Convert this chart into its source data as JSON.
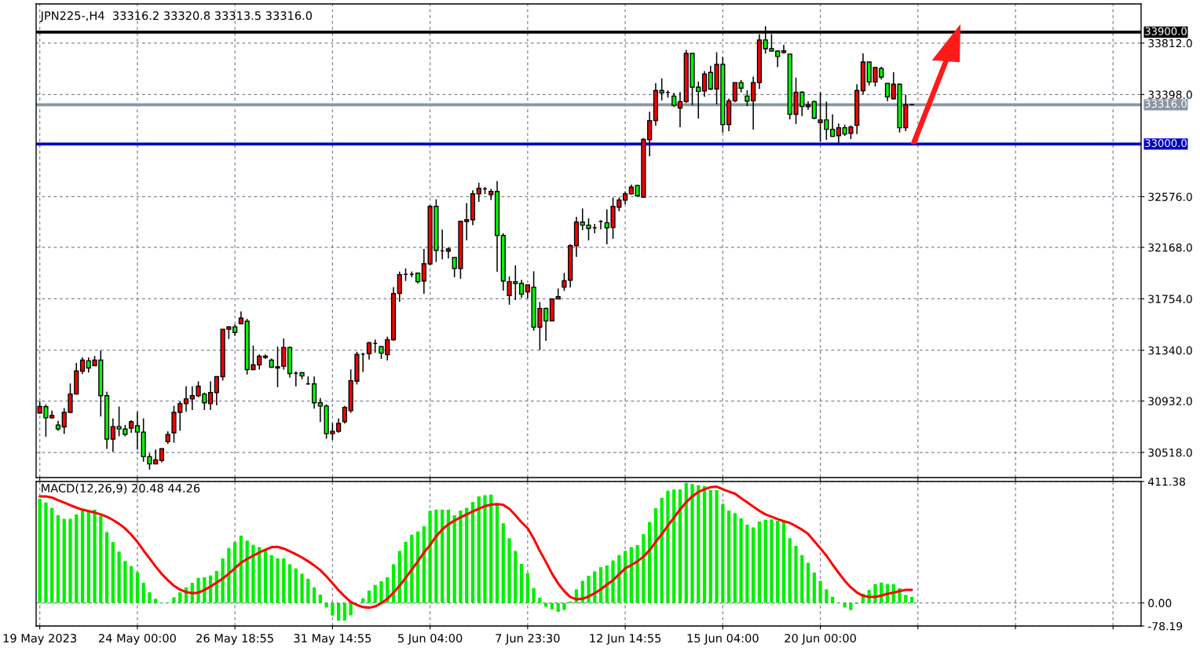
{
  "chart_data": [
    {
      "type": "candlestick",
      "title": "JPN225-,H4  33316.2 33320.8 33313.5 33316.0",
      "categories": [
        null,
        null,
        null,
        null,
        null,
        null,
        null,
        null,
        null,
        null,
        null,
        null,
        null,
        null,
        null,
        null,
        null,
        null,
        null,
        null,
        null,
        null,
        null,
        null,
        null,
        null,
        null,
        null,
        null,
        null,
        null,
        null,
        null,
        null,
        null,
        null,
        null,
        null,
        null,
        null,
        null,
        null,
        null,
        null,
        null,
        null,
        null,
        null,
        null,
        null,
        null,
        null,
        null,
        null,
        null,
        null,
        null,
        null,
        null,
        null,
        null,
        null,
        null,
        null,
        null,
        null,
        null,
        null,
        null,
        null,
        null,
        null,
        null,
        null,
        null,
        null,
        null,
        null,
        null,
        null,
        null,
        null,
        null,
        null,
        null,
        null,
        null,
        null,
        null,
        null,
        null,
        null,
        null,
        null,
        null,
        null,
        null,
        null,
        null,
        null,
        null,
        null,
        null,
        null,
        null,
        null,
        null,
        null,
        null,
        null,
        null,
        null,
        null,
        null,
        null,
        null,
        null,
        null,
        null,
        null,
        null,
        null,
        null,
        null,
        null,
        null,
        null,
        null,
        null,
        null,
        null,
        null,
        null,
        null,
        null,
        null,
        null,
        null,
        null,
        null,
        null,
        null,
        null,
        null,
        null,
        null,
        null,
        null,
        null,
        null,
        null,
        null,
        null,
        null,
        null,
        null,
        null,
        null,
        null,
        null,
        null,
        null,
        null,
        null,
        null,
        null,
        null,
        null,
        null,
        null,
        null,
        null,
        null,
        null,
        null,
        null,
        null,
        null,
        null,
        null,
        null
      ],
      "ohlc": [
        [
          30835,
          30930,
          30830,
          30888
        ],
        [
          30886,
          30905,
          30644,
          30797
        ],
        [
          30797,
          30854,
          30788,
          30816
        ],
        [
          30739,
          30773,
          30692,
          30707
        ],
        [
          30724,
          30875,
          30667,
          30841
        ],
        [
          30841,
          31073,
          30835,
          30988
        ],
        [
          30988,
          31238,
          30985,
          31174
        ],
        [
          31172,
          31283,
          31151,
          31261
        ],
        [
          31255,
          31283,
          31162,
          31198
        ],
        [
          31217,
          31295,
          31215,
          31261
        ],
        [
          31261,
          31340,
          30807,
          30975
        ],
        [
          30975,
          31007,
          30546,
          30625
        ],
        [
          30625,
          30792,
          30523,
          30726
        ],
        [
          30726,
          30888,
          30648,
          30707
        ],
        [
          30707,
          30739,
          30648,
          30663
        ],
        [
          30714,
          30777,
          30676,
          30765
        ],
        [
          30733,
          30845,
          30540,
          30682
        ],
        [
          30682,
          30792,
          30444,
          30484
        ],
        [
          30484,
          30510,
          30380,
          30427
        ],
        [
          30427,
          30542,
          30425,
          30459
        ],
        [
          30453,
          30550,
          30438,
          30548
        ],
        [
          30605,
          30688,
          30586,
          30663
        ],
        [
          30676,
          30894,
          30597,
          30841
        ],
        [
          30841,
          30930,
          30692,
          30911
        ],
        [
          30911,
          31051,
          30845,
          30949
        ],
        [
          30949,
          31051,
          30860,
          30975
        ],
        [
          30975,
          31090,
          30962,
          31051
        ],
        [
          30988,
          31000,
          30860,
          30918
        ],
        [
          30911,
          31090,
          30860,
          31000
        ],
        [
          31000,
          31128,
          30898,
          31128
        ],
        [
          31128,
          31510,
          31096,
          31510
        ],
        [
          31510,
          31535,
          31431,
          31529
        ],
        [
          31529,
          31548,
          31459,
          31484
        ],
        [
          31554,
          31652,
          31550,
          31599
        ],
        [
          31574,
          31593,
          31145,
          31185
        ],
        [
          31185,
          31378,
          31180,
          31223
        ],
        [
          31223,
          31306,
          31185,
          31293
        ],
        [
          31293,
          31306,
          31270,
          31283
        ],
        [
          31261,
          31274,
          31198,
          31204
        ],
        [
          31198,
          31370,
          31043,
          31208
        ],
        [
          31211,
          31435,
          31185,
          31363
        ],
        [
          31363,
          31370,
          31121,
          31153
        ],
        [
          31155,
          31170,
          31049,
          31155
        ],
        [
          31160,
          31164,
          31106,
          31134
        ],
        [
          31070,
          31130,
          31064,
          31070
        ],
        [
          31070,
          31130,
          30871,
          30918
        ],
        [
          30918,
          30956,
          30763,
          30892
        ],
        [
          30892,
          30905,
          30629,
          30669
        ],
        [
          30669,
          30754,
          30618,
          30688
        ],
        [
          30688,
          30792,
          30676,
          30752
        ],
        [
          30766,
          30892,
          30751,
          30881
        ],
        [
          30854,
          31187,
          30837,
          31096
        ],
        [
          31092,
          31328,
          31065,
          31307
        ],
        [
          31309,
          31319,
          31166,
          31309
        ],
        [
          31313,
          31408,
          31265,
          31401
        ],
        [
          31395,
          31427,
          31321,
          31395
        ],
        [
          31370,
          31372,
          31271,
          31317
        ],
        [
          31305,
          31450,
          31258,
          31425
        ],
        [
          31425,
          31848,
          31418,
          31797
        ],
        [
          31797,
          31974,
          31730,
          31949
        ],
        [
          31951,
          31999,
          31898,
          31951
        ],
        [
          31951,
          31974,
          31928,
          31951
        ],
        [
          31961,
          31965,
          31877,
          31892
        ],
        [
          31898,
          32155,
          31795,
          32037
        ],
        [
          32035,
          32509,
          32024,
          32498
        ],
        [
          32498,
          32555,
          32050,
          32144
        ],
        [
          32140,
          32311,
          32071,
          32140
        ],
        [
          32138,
          32170,
          32079,
          32155
        ],
        [
          32088,
          32088,
          31928,
          31999
        ],
        [
          31999,
          32378,
          31915,
          32378
        ],
        [
          32376,
          32525,
          32224,
          32391
        ],
        [
          32391,
          32627,
          32347,
          32599
        ],
        [
          32599,
          32688,
          32534,
          32643
        ],
        [
          32639,
          32654,
          32597,
          32639
        ],
        [
          32593,
          32639,
          32549,
          32618
        ],
        [
          32618,
          32702,
          31972,
          32264
        ],
        [
          32264,
          32281,
          31820,
          31898
        ],
        [
          31780,
          31934,
          31707,
          31892
        ],
        [
          31892,
          32024,
          31745,
          31879
        ],
        [
          31879,
          31907,
          31763,
          31791
        ],
        [
          31810,
          31867,
          31757,
          31867
        ],
        [
          31848,
          31976,
          31498,
          31526
        ],
        [
          31526,
          31728,
          31342,
          31677
        ],
        [
          31677,
          31684,
          31416,
          31576
        ],
        [
          31576,
          31759,
          31574,
          31753
        ],
        [
          31753,
          31837,
          31750,
          31772
        ],
        [
          31848,
          31963,
          31818,
          31900
        ],
        [
          31904,
          32193,
          31846,
          32182
        ],
        [
          32182,
          32414,
          32092,
          32372
        ],
        [
          32372,
          32481,
          32307,
          32347
        ],
        [
          32347,
          32403,
          32224,
          32321
        ],
        [
          32326,
          32357,
          32281,
          32326
        ],
        [
          32376,
          32387,
          32313,
          32376
        ],
        [
          32366,
          32475,
          32193,
          32326
        ],
        [
          32328,
          32570,
          32237,
          32498
        ],
        [
          32492,
          32570,
          32458,
          32549
        ],
        [
          32549,
          32618,
          32515,
          32599
        ],
        [
          32598,
          32674,
          32593,
          32653
        ],
        [
          32666,
          32670,
          32576,
          32583
        ],
        [
          32572,
          33048,
          32570,
          33037
        ],
        [
          33035,
          33260,
          32901,
          33188
        ],
        [
          33188,
          33489,
          33147,
          33430
        ],
        [
          33430,
          33528,
          33351,
          33411
        ],
        [
          33415,
          33432,
          33373,
          33415
        ],
        [
          33385,
          33411,
          33298,
          33311
        ],
        [
          33290,
          33417,
          33135,
          33341
        ],
        [
          33341,
          33757,
          33330,
          33729
        ],
        [
          33729,
          33729,
          33311,
          33457
        ],
        [
          33457,
          33502,
          33205,
          33423
        ],
        [
          33426,
          33587,
          33379,
          33564
        ],
        [
          33576,
          33629,
          33434,
          33443
        ],
        [
          33443,
          33738,
          33319,
          33640
        ],
        [
          33640,
          33699,
          33092,
          33156
        ],
        [
          33156,
          33366,
          33103,
          33347
        ],
        [
          33347,
          33494,
          33336,
          33494
        ],
        [
          33494,
          33515,
          33415,
          33449
        ],
        [
          33385,
          33432,
          33305,
          33345
        ],
        [
          33347,
          33542,
          33116,
          33494
        ],
        [
          33494,
          33884,
          33443,
          33837
        ],
        [
          33837,
          33948,
          33727,
          33767
        ],
        [
          33767,
          33884,
          33746,
          33748
        ],
        [
          33748,
          33753,
          33619,
          33704
        ],
        [
          33736,
          33799,
          33727,
          33750
        ],
        [
          33723,
          33723,
          33198,
          33239
        ],
        [
          33239,
          33534,
          33160,
          33417
        ],
        [
          33417,
          33426,
          33224,
          33302
        ],
        [
          33300,
          33343,
          33275,
          33315
        ],
        [
          33341,
          33349,
          33201,
          33207
        ],
        [
          33173,
          33417,
          33018,
          33194
        ],
        [
          33194,
          33341,
          33033,
          33118
        ],
        [
          33118,
          33239,
          33058,
          33061
        ],
        [
          33067,
          33165,
          33007,
          33131
        ],
        [
          33131,
          33156,
          33065,
          33080
        ],
        [
          33086,
          33150,
          33039,
          33137
        ],
        [
          33150,
          33481,
          33080,
          33430
        ],
        [
          33428,
          33729,
          33398,
          33659
        ],
        [
          33659,
          33659,
          33472,
          33500
        ],
        [
          33500,
          33621,
          33462,
          33615
        ],
        [
          33608,
          33621,
          33519,
          33538
        ],
        [
          33487,
          33487,
          33345,
          33379
        ],
        [
          33364,
          33578,
          33358,
          33481
        ],
        [
          33481,
          33487,
          33092,
          33131
        ],
        [
          33131,
          33398,
          33103,
          33315
        ],
        [
          33316.2,
          33320.8,
          33313.5,
          33316.0
        ],
        null,
        null,
        null,
        null,
        null,
        null,
        null,
        null,
        null,
        null,
        null,
        null,
        null,
        null,
        null,
        null,
        null,
        null,
        null,
        null,
        null,
        null,
        null,
        null,
        null,
        null,
        null,
        null,
        null,
        null,
        null,
        null,
        null,
        null,
        null,
        null,
        null
      ],
      "colors": [
        "#ff0000",
        "#00ff00",
        "#ff0000",
        "#00ff00",
        "#ff0000",
        "#ff0000",
        "#ff0000",
        "#ff0000",
        "#00ff00",
        "#ff0000",
        "#00ff00",
        "#00ff00",
        "#ff0000",
        "#00ff00",
        "#00ff00",
        "#ff0000",
        "#00ff00",
        "#00ff00",
        "#00ff00",
        "#ff0000",
        "#ff0000",
        "#ff0000",
        "#ff0000",
        "#ff0000",
        "#ff0000",
        "#ff0000",
        "#ff0000",
        "#00ff00",
        "#ff0000",
        "#ff0000",
        "#ff0000",
        "#ff0000",
        "#00ff00",
        "#ff0000",
        "#00ff00",
        "#ff0000",
        "#ff0000",
        "#00ff00",
        "#00ff00",
        "#ff0000",
        "#ff0000",
        "#00ff00",
        "#000000",
        "#00ff00",
        "#000000",
        "#00ff00",
        "#00ff00",
        "#00ff00",
        "#ff0000",
        "#ff0000",
        "#ff0000",
        "#ff0000",
        "#ff0000",
        "#000000",
        "#ff0000",
        "#000000",
        "#00ff00",
        "#ff0000",
        "#ff0000",
        "#ff0000",
        "#000000",
        "#000000",
        "#00ff00",
        "#ff0000",
        "#ff0000",
        "#00ff00",
        "#000000",
        "#ff0000",
        "#00ff00",
        "#ff0000",
        "#ff0000",
        "#ff0000",
        "#ff0000",
        "#000000",
        "#ff0000",
        "#00ff00",
        "#00ff00",
        "#ff0000",
        "#00ff00",
        "#00ff00",
        "#ff0000",
        "#00ff00",
        "#ff0000",
        "#00ff00",
        "#ff0000",
        "#ff0000",
        "#ff0000",
        "#ff0000",
        "#ff0000",
        "#00ff00",
        "#00ff00",
        "#000000",
        "#000000",
        "#00ff00",
        "#ff0000",
        "#ff0000",
        "#ff0000",
        "#ff0000",
        "#00ff00",
        "#ff0000",
        "#ff0000",
        "#ff0000",
        "#00ff00",
        "#000000",
        "#00ff00",
        "#ff0000",
        "#ff0000",
        "#00ff00",
        "#00ff00",
        "#ff0000",
        "#00ff00",
        "#ff0000",
        "#00ff00",
        "#ff0000",
        "#ff0000",
        "#00ff00",
        "#00ff00",
        "#ff0000",
        "#ff0000",
        "#00ff00",
        "#00ff00",
        "#00ff00",
        "#ff0000",
        "#00ff00",
        "#ff0000",
        "#00ff00",
        "#ff0000",
        "#00ff00",
        "#ff0000",
        "#00ff00",
        "#00ff00",
        "#ff0000",
        "#00ff00",
        "#ff0000",
        "#ff0000",
        "#ff0000",
        "#00ff00",
        "#ff0000",
        "#00ff00",
        "#00ff00",
        "#ff0000",
        "#00ff00",
        "#ff0000",
        "#000000",
        null,
        null,
        null,
        null,
        null,
        null,
        null,
        null,
        null,
        null,
        null,
        null,
        null,
        null,
        null,
        null,
        null,
        null,
        null,
        null,
        null,
        null,
        null,
        null,
        null,
        null,
        null,
        null,
        null,
        null,
        null,
        null,
        null,
        null,
        null,
        null,
        null
      ],
      "ylim": [
        30316,
        34127
      ],
      "yticks": [
        {
          "value": 30518,
          "label": "30518.0"
        },
        {
          "value": 30932,
          "label": "30932.0"
        },
        {
          "value": 31340,
          "label": "31340.0"
        },
        {
          "value": 31754,
          "label": "31754.0"
        },
        {
          "value": 32168,
          "label": "32168.0"
        },
        {
          "value": 32576,
          "label": "32576.0"
        },
        {
          "value": 33398,
          "label": "33398.0"
        },
        {
          "value": 33812,
          "label": "33812.0"
        }
      ],
      "ref_lines": [
        {
          "axis": "y",
          "value": 33316,
          "label": "33316.0",
          "color": "#8a96a3"
        },
        {
          "axis": "y",
          "value": 33900,
          "label": "33900.0",
          "color": "#000000"
        },
        {
          "axis": "y",
          "value": 33000,
          "label": "33000.0",
          "color": "#0000c8"
        }
      ],
      "grid": true,
      "tick_labels": "y"
    },
    {
      "type": "bar",
      "title": "MACD(12,26,9) 20.48 44.26",
      "categories": [
        "19 May 2023",
        null,
        null,
        null,
        null,
        null,
        null,
        null,
        null,
        null,
        null,
        null,
        null,
        null,
        null,
        null,
        "24 May 00:00",
        null,
        null,
        null,
        null,
        null,
        null,
        null,
        null,
        null,
        null,
        null,
        null,
        null,
        null,
        null,
        "26 May 18:55",
        null,
        null,
        null,
        null,
        null,
        null,
        null,
        null,
        null,
        null,
        null,
        null,
        null,
        null,
        null,
        "31 May 14:55",
        null,
        null,
        null,
        null,
        null,
        null,
        null,
        null,
        null,
        null,
        null,
        null,
        null,
        null,
        null,
        "5 Jun 04:00",
        null,
        null,
        null,
        null,
        null,
        null,
        null,
        null,
        null,
        null,
        null,
        null,
        null,
        null,
        null,
        "7 Jun 23:30",
        null,
        null,
        null,
        null,
        null,
        null,
        null,
        null,
        null,
        null,
        null,
        null,
        null,
        null,
        null,
        "12 Jun 14:55",
        null,
        null,
        null,
        null,
        null,
        null,
        null,
        null,
        null,
        null,
        null,
        null,
        null,
        null,
        null,
        "15 Jun 04:00",
        null,
        null,
        null,
        null,
        null,
        null,
        null,
        null,
        null,
        null,
        null,
        null,
        null,
        null,
        null,
        "20 Jun 00:00",
        null,
        null,
        null,
        null,
        null,
        null,
        null,
        null,
        null,
        null,
        null,
        null,
        null,
        null,
        null,
        null,
        null,
        null,
        null,
        null,
        null,
        null,
        null,
        null,
        null,
        null,
        null,
        null,
        null,
        null,
        null,
        null,
        null,
        null,
        null,
        null,
        null,
        null,
        null,
        null,
        null,
        null,
        null,
        null,
        null,
        null,
        null,
        null,
        null,
        null,
        null,
        null
      ],
      "series": [
        {
          "type": "bar",
          "color": "#00ee00",
          "values": [
            353,
            340,
            322,
            297,
            285,
            285,
            300,
            313,
            311,
            316,
            295,
            240,
            206,
            174,
            142,
            125,
            104,
            68,
            36,
            14,
            1,
            1,
            19,
            36,
            53,
            68,
            85,
            87,
            93,
            108,
            151,
            186,
            206,
            228,
            211,
            197,
            189,
            181,
            162,
            151,
            151,
            131,
            117,
            99,
            82,
            53,
            28,
            -15,
            -43,
            -60,
            -60,
            -42,
            null,
            16,
            42,
            61,
            74,
            87,
            131,
            176,
            207,
            231,
            242,
            260,
            312,
            316,
            316,
            316,
            297,
            313,
            322,
            342,
            361,
            365,
            367,
            334,
            270,
            219,
            176,
            132,
            101,
            50,
            18,
            -13,
            -22,
            -30,
            -24,
            5,
            46,
            75,
            92,
            107,
            121,
            127,
            144,
            162,
            176,
            189,
            196,
            233,
            274,
            321,
            356,
            380,
            384,
            385,
            407,
            403,
            399,
            396,
            382,
            382,
            336,
            313,
            304,
            287,
            265,
            256,
            276,
            282,
            283,
            278,
            275,
            219,
            193,
            162,
            136,
            103,
            75,
            46,
            21,
            2,
            -15,
            -24,
            -3,
            31,
            44,
            64,
            69,
            64,
            64,
            50,
            27,
            20.48,
            null,
            null,
            null,
            null,
            null,
            null,
            null,
            null,
            null,
            null,
            null,
            null,
            null,
            null,
            null,
            null,
            null,
            null,
            null,
            null,
            null,
            null,
            null,
            null,
            null,
            null,
            null,
            null,
            null,
            null,
            null,
            null,
            null,
            null,
            null,
            null,
            null
          ]
        },
        {
          "type": "line",
          "color": "#ff0000",
          "values": [
            361,
            361,
            357,
            348,
            340,
            331,
            323,
            316,
            311,
            306,
            300,
            292,
            281,
            268,
            252,
            231,
            207,
            178,
            151,
            123,
            98,
            77,
            58,
            45,
            37,
            33,
            35,
            44,
            56,
            69,
            83,
            99,
            118,
            136,
            149,
            160,
            171,
            180,
            189,
            190,
            184,
            175,
            165,
            154,
            141,
            127,
            111,
            90,
            67,
            43,
            22,
            3,
            -7,
            -14,
            -16,
            -12,
            -1,
            14,
            35,
            58,
            85,
            113,
            141,
            171,
            196,
            226,
            249,
            266,
            279,
            290,
            300,
            310,
            319,
            328,
            333,
            335,
            332,
            319,
            297,
            273,
            253,
            218,
            176,
            139,
            99,
            66,
            40,
            20,
            12,
            14,
            22,
            33,
            46,
            62,
            77,
            97,
            117,
            128,
            141,
            157,
            179,
            207,
            233,
            262,
            289,
            317,
            341,
            361,
            376,
            385,
            392,
            394,
            385,
            377,
            370,
            355,
            341,
            326,
            312,
            300,
            292,
            284,
            277,
            271,
            260,
            248,
            234,
            209,
            185,
            160,
            130,
            102,
            75,
            53,
            35,
            24,
            20,
            20,
            25,
            31,
            35,
            40,
            44,
            44.26,
            null,
            null,
            null,
            null,
            null,
            null,
            null,
            null,
            null,
            null,
            null,
            null,
            null,
            null,
            null,
            null,
            null,
            null,
            null,
            null,
            null,
            null,
            null,
            null,
            null,
            null,
            null,
            null,
            null,
            null,
            null,
            null,
            null,
            null,
            null,
            null,
            null
          ]
        }
      ],
      "ylim": [
        -78.19,
        411.38
      ],
      "yticks": [
        {
          "value": 411.38,
          "label": "411.38"
        },
        {
          "value": 0,
          "label": "0.00"
        },
        {
          "value": -78.19,
          "label": "-78.19"
        }
      ],
      "grid": true
    }
  ]
}
